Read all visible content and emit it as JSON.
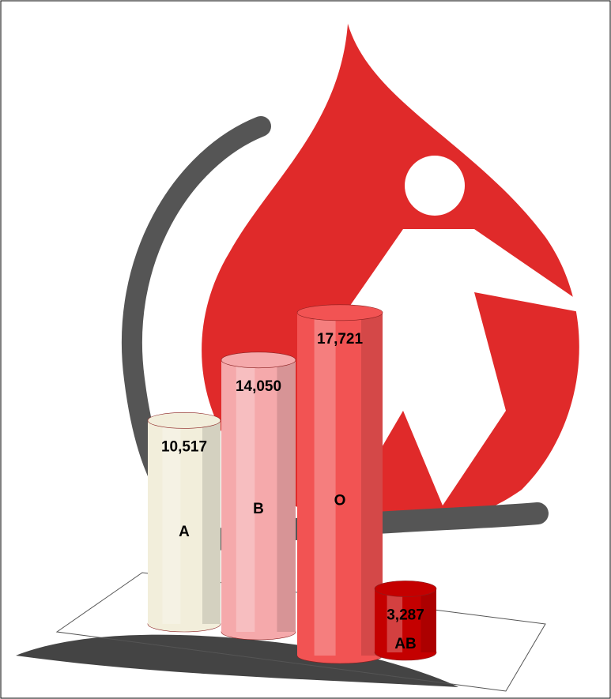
{
  "chart_data": {
    "type": "bar",
    "categories": [
      "A",
      "B",
      "O",
      "AB"
    ],
    "values": [
      10517,
      14050,
      17721,
      3287
    ],
    "value_labels": [
      "10,517",
      "14,050",
      "17,721",
      "3,287"
    ],
    "colors": [
      "#f2eedb",
      "#f5a9ab",
      "#f25353",
      "#c40000"
    ]
  }
}
